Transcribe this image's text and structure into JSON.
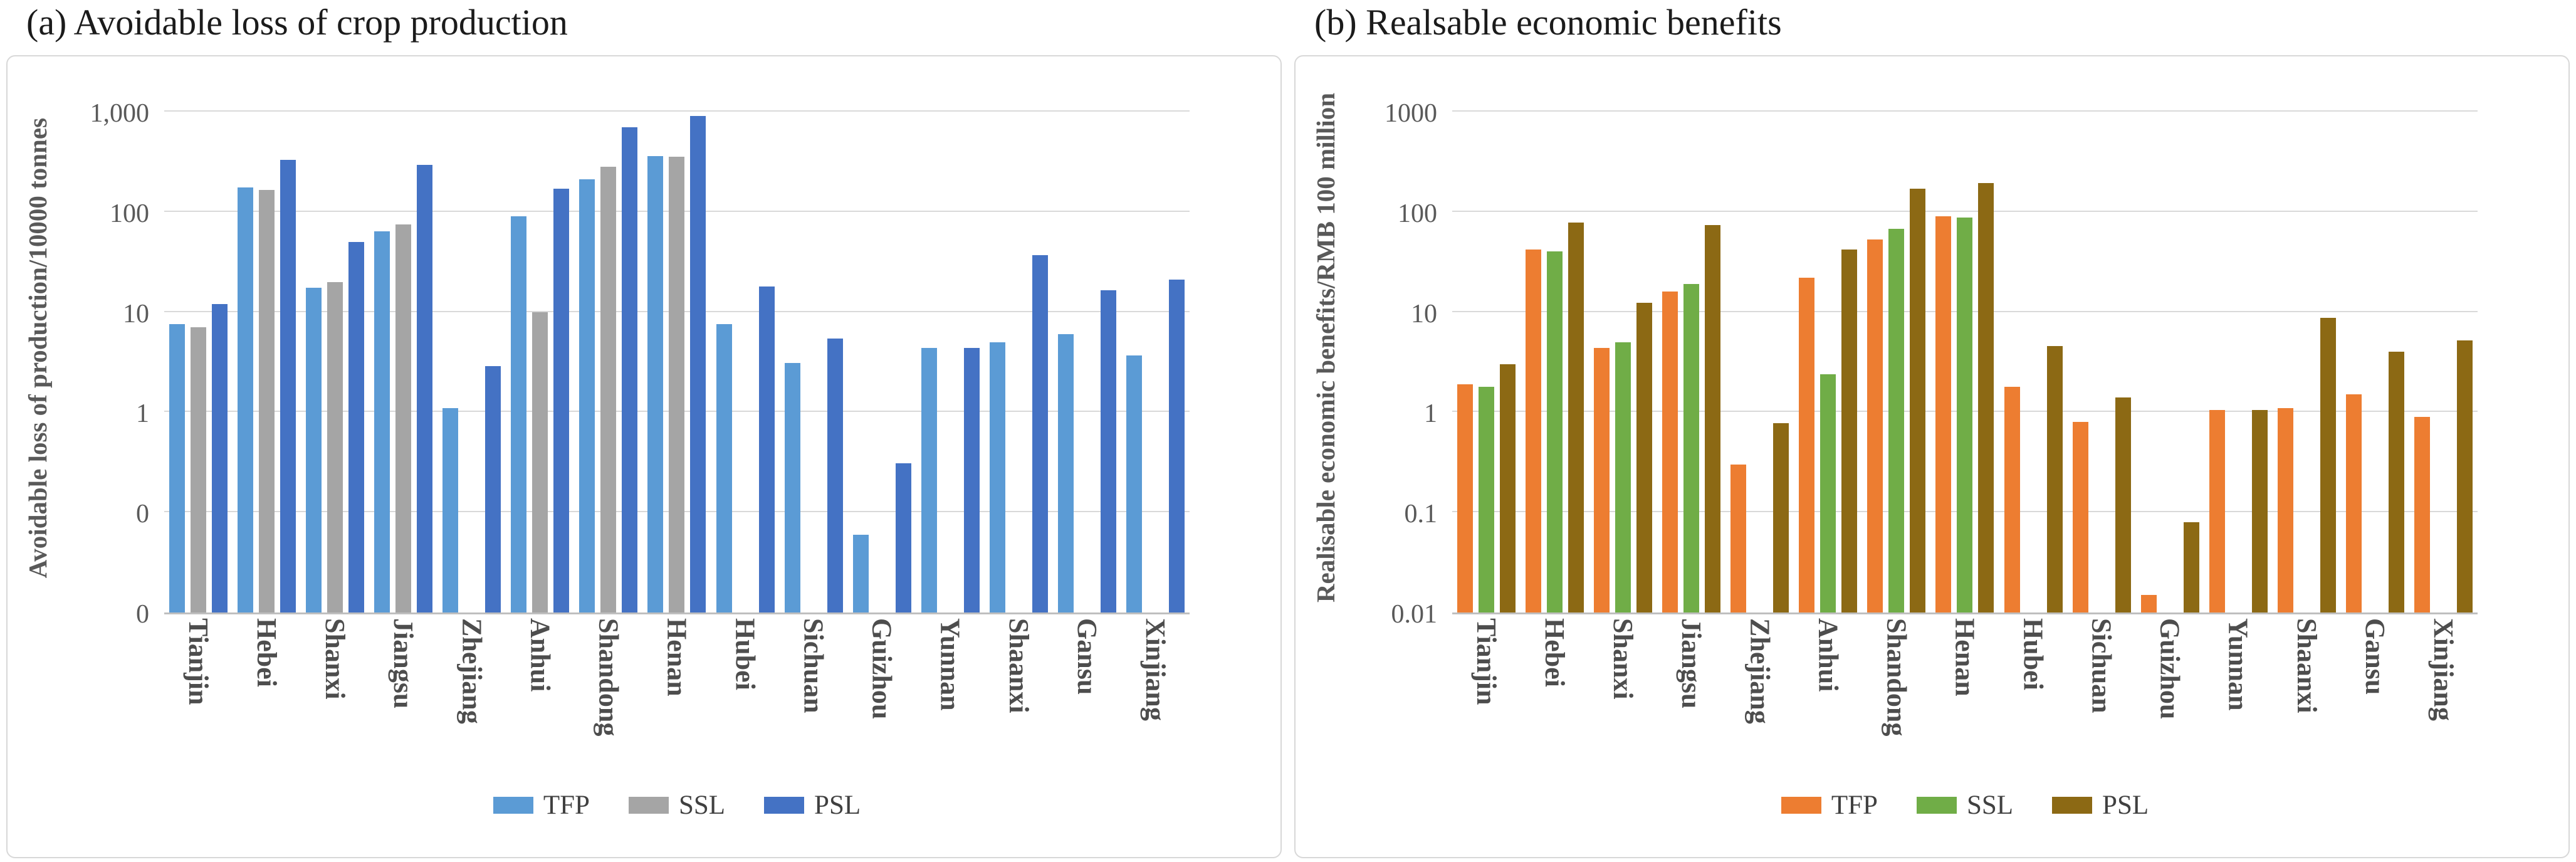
{
  "chart_data": [
    {
      "type": "bar",
      "title": "(a) Avoidable loss of crop production",
      "ylabel": "Avoidable loss of production/10000 tonnes",
      "yscale": "log",
      "ylim": [
        0.01,
        2000
      ],
      "grid": true,
      "legend_position": "bottom",
      "ytick_labels": [
        "1,000",
        "100",
        "10",
        "1",
        "0",
        "0"
      ],
      "ytick_values": [
        1000,
        100,
        10,
        1,
        0.1,
        0.01
      ],
      "categories": [
        "Tianjin",
        "Hebei",
        "Shanxi",
        "Jiangsu",
        "Zhejiang",
        "Anhui",
        "Shandong",
        "Henan",
        "Hubei",
        "Sichuan",
        "Guizhou",
        "Yunnan",
        "Shaanxi",
        "Gansu",
        "Xinjiang"
      ],
      "series": [
        {
          "name": "TFP",
          "color": "#5B9BD5",
          "values": [
            7.6,
            175,
            17.5,
            64,
            1.1,
            90,
            210,
            360,
            7.6,
            3.1,
            0.06,
            4.4,
            5,
            6,
            3.7
          ]
        },
        {
          "name": "SSL",
          "color": "#A5A5A5",
          "values": [
            7,
            165,
            20,
            75,
            null,
            10,
            280,
            355,
            null,
            null,
            null,
            null,
            null,
            null,
            null
          ]
        },
        {
          "name": "PSL",
          "color": "#4472C4",
          "values": [
            12,
            330,
            50,
            295,
            2.9,
            170,
            700,
            900,
            18,
            5.4,
            0.31,
            4.4,
            37,
            16.5,
            21
          ]
        }
      ]
    },
    {
      "type": "bar",
      "title": "(b) Realsable economic benefits",
      "ylabel": "Realisable economic benefits/RMB 100 million",
      "yscale": "log",
      "ylim": [
        0.01,
        2000
      ],
      "grid": true,
      "legend_position": "bottom",
      "ytick_labels": [
        "1000",
        "100",
        "10",
        "1",
        "0.1",
        "0.01"
      ],
      "ytick_values": [
        1000,
        100,
        10,
        1,
        0.1,
        0.01
      ],
      "categories": [
        "Tianjin",
        "Hebei",
        "Shanxi",
        "Jiangsu",
        "Zhejiang",
        "Anhui",
        "Shandong",
        "Henan",
        "Hubei",
        "Sichuan",
        "Guizhou",
        "Yunnan",
        "Shaanxi",
        "Gansu",
        "Xinjiang"
      ],
      "series": [
        {
          "name": "TFP",
          "color": "#ED7D31",
          "values": [
            1.9,
            42,
            4.4,
            16,
            0.3,
            22,
            53,
            90,
            1.8,
            0.8,
            0.015,
            1.05,
            1.1,
            1.5,
            0.9
          ]
        },
        {
          "name": "SSL",
          "color": "#70AD47",
          "values": [
            1.8,
            40,
            5.0,
            19,
            null,
            2.4,
            68,
            88,
            null,
            null,
            null,
            null,
            null,
            null,
            null
          ]
        },
        {
          "name": "PSL",
          "color": "#8C6914",
          "values": [
            3.0,
            78,
            12.4,
            74,
            0.78,
            42,
            170,
            195,
            4.6,
            1.4,
            0.08,
            1.05,
            8.8,
            4.0,
            5.2
          ]
        }
      ]
    }
  ]
}
